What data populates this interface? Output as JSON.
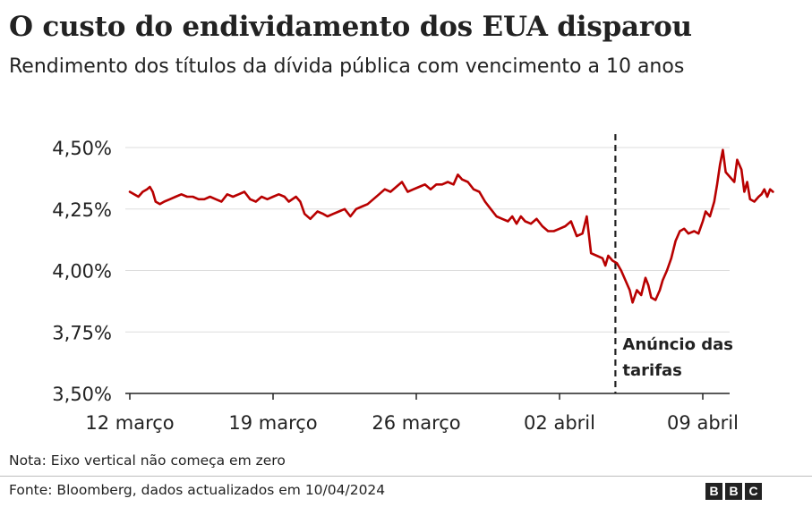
{
  "title": "O custo do endividamento dos EUA disparou",
  "subtitle": "Rendimento dos títulos da dívida pública com vencimento a 10 anos",
  "note": "Nota: Eixo vertical não começa em zero",
  "source": "Fonte: Bloomberg, dados actualizados em 10/04/2024",
  "logo": [
    "B",
    "B",
    "C"
  ],
  "colors": {
    "line": "#b80000",
    "grid": "#dddddd",
    "axis": "#222222"
  },
  "chart_data": {
    "type": "line",
    "title": "O custo do endividamento dos EUA disparou",
    "subtitle": "Rendimento dos títulos da dívida pública com vencimento a 10 anos",
    "xlabel": "",
    "ylabel": "",
    "x_tick_labels": [
      "12 março",
      "19 março",
      "26 março",
      "02 abril",
      "09 abril"
    ],
    "y_tick_labels": [
      "3,50%",
      "3,75%",
      "4,00%",
      "4,25%",
      "4,50%"
    ],
    "y_ticks": [
      3.5,
      3.75,
      4.0,
      4.25,
      4.5
    ],
    "ylim": [
      3.5,
      4.5
    ],
    "grid": true,
    "annotation": {
      "label_lines": [
        "Anúncio das",
        "tarifas"
      ]
    },
    "series": [
      {
        "points": [
          [
            0.0,
            4.32
          ],
          [
            0.15,
            4.31
          ],
          [
            0.3,
            4.3
          ],
          [
            0.45,
            4.32
          ],
          [
            0.6,
            4.33
          ],
          [
            0.7,
            4.34
          ],
          [
            0.8,
            4.32
          ],
          [
            0.9,
            4.28
          ],
          [
            1.05,
            4.27
          ],
          [
            1.2,
            4.28
          ],
          [
            1.4,
            4.29
          ],
          [
            1.6,
            4.3
          ],
          [
            1.8,
            4.31
          ],
          [
            2.0,
            4.3
          ],
          [
            2.2,
            4.3
          ],
          [
            2.4,
            4.29
          ],
          [
            2.6,
            4.29
          ],
          [
            2.8,
            4.3
          ],
          [
            3.0,
            4.29
          ],
          [
            3.2,
            4.28
          ],
          [
            3.4,
            4.31
          ],
          [
            3.6,
            4.3
          ],
          [
            3.8,
            4.31
          ],
          [
            4.0,
            4.32
          ],
          [
            4.2,
            4.29
          ],
          [
            4.4,
            4.28
          ],
          [
            4.6,
            4.3
          ],
          [
            4.8,
            4.29
          ],
          [
            5.0,
            4.3
          ],
          [
            5.2,
            4.31
          ],
          [
            5.4,
            4.3
          ],
          [
            5.55,
            4.28
          ],
          [
            5.8,
            4.3
          ],
          [
            5.95,
            4.28
          ],
          [
            6.1,
            4.23
          ],
          [
            6.3,
            4.21
          ],
          [
            6.55,
            4.24
          ],
          [
            6.75,
            4.23
          ],
          [
            6.9,
            4.22
          ],
          [
            7.1,
            4.23
          ],
          [
            7.3,
            4.24
          ],
          [
            7.5,
            4.25
          ],
          [
            7.7,
            4.22
          ],
          [
            7.9,
            4.25
          ],
          [
            8.1,
            4.26
          ],
          [
            8.3,
            4.27
          ],
          [
            8.5,
            4.29
          ],
          [
            8.7,
            4.31
          ],
          [
            8.9,
            4.33
          ],
          [
            9.1,
            4.32
          ],
          [
            9.3,
            4.34
          ],
          [
            9.5,
            4.36
          ],
          [
            9.7,
            4.32
          ],
          [
            9.9,
            4.33
          ],
          [
            10.1,
            4.34
          ],
          [
            10.3,
            4.35
          ],
          [
            10.5,
            4.33
          ],
          [
            10.7,
            4.35
          ],
          [
            10.9,
            4.35
          ],
          [
            11.1,
            4.36
          ],
          [
            11.3,
            4.35
          ],
          [
            11.45,
            4.39
          ],
          [
            11.6,
            4.37
          ],
          [
            11.8,
            4.36
          ],
          [
            12.0,
            4.33
          ],
          [
            12.2,
            4.32
          ],
          [
            12.4,
            4.28
          ],
          [
            12.6,
            4.25
          ],
          [
            12.8,
            4.22
          ],
          [
            13.0,
            4.21
          ],
          [
            13.2,
            4.2
          ],
          [
            13.35,
            4.22
          ],
          [
            13.5,
            4.19
          ],
          [
            13.65,
            4.22
          ],
          [
            13.8,
            4.2
          ],
          [
            14.0,
            4.19
          ],
          [
            14.2,
            4.21
          ],
          [
            14.4,
            4.18
          ],
          [
            14.6,
            4.16
          ],
          [
            14.8,
            4.16
          ],
          [
            15.0,
            4.17
          ],
          [
            15.2,
            4.18
          ],
          [
            15.4,
            4.2
          ],
          [
            15.6,
            4.14
          ],
          [
            15.8,
            4.15
          ],
          [
            15.95,
            4.22
          ],
          [
            16.1,
            4.07
          ],
          [
            16.3,
            4.06
          ],
          [
            16.5,
            4.05
          ],
          [
            16.6,
            4.02
          ],
          [
            16.7,
            4.06
          ],
          [
            16.85,
            4.04
          ],
          [
            17.0,
            4.03
          ],
          [
            17.15,
            4.0
          ],
          [
            17.3,
            3.96
          ],
          [
            17.45,
            3.92
          ],
          [
            17.55,
            3.87
          ],
          [
            17.7,
            3.92
          ],
          [
            17.85,
            3.9
          ],
          [
            18.0,
            3.97
          ],
          [
            18.1,
            3.94
          ],
          [
            18.2,
            3.89
          ],
          [
            18.35,
            3.88
          ],
          [
            18.5,
            3.92
          ],
          [
            18.6,
            3.96
          ],
          [
            18.75,
            4.0
          ],
          [
            18.9,
            4.05
          ],
          [
            19.05,
            4.12
          ],
          [
            19.2,
            4.16
          ],
          [
            19.35,
            4.17
          ],
          [
            19.5,
            4.15
          ],
          [
            19.7,
            4.16
          ],
          [
            19.85,
            4.15
          ],
          [
            20.0,
            4.2
          ],
          [
            20.1,
            4.24
          ],
          [
            20.25,
            4.22
          ],
          [
            20.4,
            4.28
          ],
          [
            20.5,
            4.35
          ],
          [
            20.6,
            4.43
          ],
          [
            20.7,
            4.49
          ],
          [
            20.8,
            4.4
          ],
          [
            20.95,
            4.38
          ],
          [
            21.1,
            4.36
          ],
          [
            21.2,
            4.45
          ],
          [
            21.35,
            4.41
          ],
          [
            21.45,
            4.32
          ],
          [
            21.55,
            4.36
          ],
          [
            21.65,
            4.29
          ],
          [
            21.8,
            4.28
          ],
          [
            21.95,
            4.3
          ],
          [
            22.05,
            4.31
          ],
          [
            22.15,
            4.33
          ],
          [
            22.25,
            4.3
          ],
          [
            22.35,
            4.33
          ],
          [
            22.45,
            4.32
          ]
        ]
      }
    ]
  }
}
